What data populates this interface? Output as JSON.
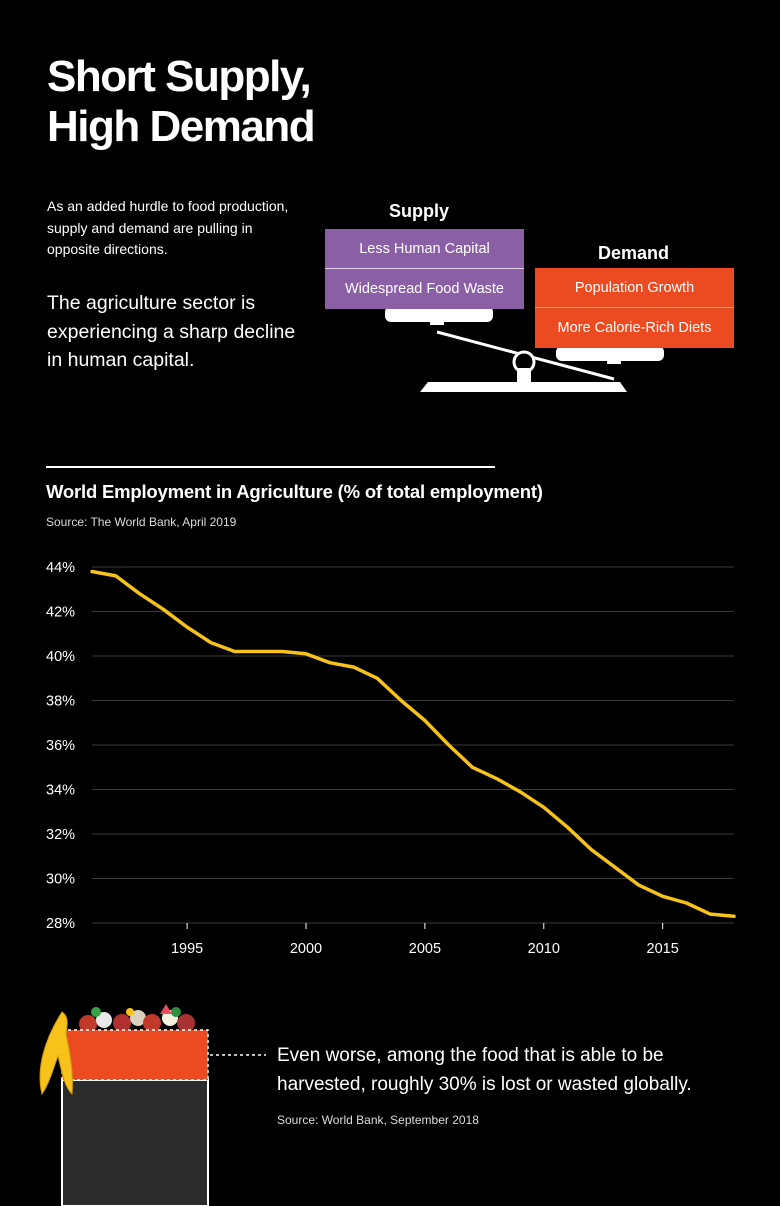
{
  "header": {
    "title_line1": "Short Supply,",
    "title_line2": "High Demand",
    "intro_small": "As an added hurdle to food production, supply and demand are pulling in opposite directions.",
    "intro_large": "The agriculture sector is experiencing a sharp decline in human capital."
  },
  "scale": {
    "supply_label": "Supply",
    "supply_items": [
      "Less Human Capital",
      "Widespread Food Waste"
    ],
    "demand_label": "Demand",
    "demand_items": [
      "Population Growth",
      "More Calorie-Rich Diets"
    ]
  },
  "colors": {
    "line": "#f7c21a",
    "supply": "#8a5fa6",
    "demand": "#ec4a20",
    "grid": "#3a3a3a",
    "bin_body": "#2b2b2b"
  },
  "chart_data": {
    "type": "line",
    "title": "World Employment in Agriculture (% of total employment)",
    "source": "Source: The World Bank, April 2019",
    "xlim": [
      1991,
      2018
    ],
    "ylim": [
      28,
      44
    ],
    "xticks": [
      1995,
      2000,
      2005,
      2010,
      2015
    ],
    "yticks": [
      44,
      42,
      40,
      38,
      36,
      34,
      32,
      30,
      28
    ],
    "ytick_labels": [
      "44%",
      "42%",
      "40%",
      "38%",
      "36%",
      "34%",
      "32%",
      "30%",
      "28%"
    ],
    "grid": true,
    "series": [
      {
        "x": [
          1991,
          1992,
          1993,
          1994,
          1995,
          1996,
          1997,
          1998,
          1999,
          2000,
          2001,
          2002,
          2003,
          2004,
          2005,
          2006,
          2007,
          2008,
          2009,
          2010,
          2011,
          2012,
          2013,
          2014,
          2015,
          2016,
          2017,
          2018
        ],
        "values": [
          43.8,
          43.6,
          42.8,
          42.1,
          41.3,
          40.6,
          40.2,
          40.2,
          40.2,
          40.1,
          39.7,
          39.5,
          39.0,
          38.0,
          37.1,
          36.0,
          35.0,
          34.5,
          33.9,
          33.2,
          32.3,
          31.3,
          30.5,
          29.7,
          29.2,
          28.9,
          28.4,
          28.3
        ]
      }
    ]
  },
  "footer": {
    "text": "Even worse, among the food that is able to be harvested, roughly 30% is lost or wasted globally.",
    "source": "Source: World Bank, September 2018"
  }
}
